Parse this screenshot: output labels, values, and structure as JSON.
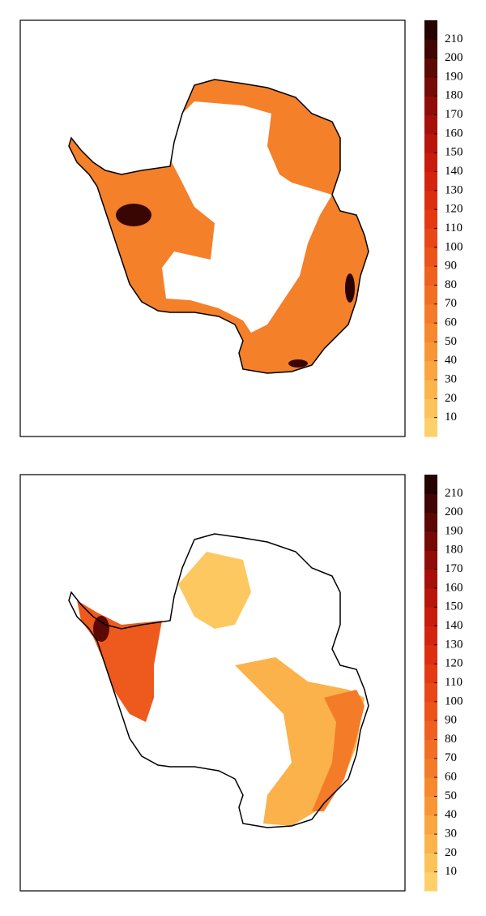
{
  "maps": [
    {
      "colorbar": {
        "lim": [
          0,
          220
        ],
        "ticks": [
          10,
          20,
          30,
          40,
          50,
          60,
          70,
          80,
          90,
          100,
          110,
          120,
          130,
          140,
          150,
          160,
          170,
          180,
          190,
          200,
          210
        ],
        "colors": [
          "#fdd06a",
          "#fcc35a",
          "#fbb44c",
          "#f9a540",
          "#f89636",
          "#f6882e",
          "#f47b28",
          "#f26e22",
          "#ef611e",
          "#ec541a",
          "#e84717",
          "#e33a14",
          "#dd2e12",
          "#d42410",
          "#c81c0e",
          "#b8160c",
          "#a5110a",
          "#8f0d08",
          "#760a06",
          "#5c0804",
          "#410603",
          "#250301"
        ]
      }
    },
    {
      "colorbar": {
        "lim": [
          0,
          220
        ],
        "ticks": [
          10,
          20,
          30,
          40,
          50,
          60,
          70,
          80,
          90,
          100,
          110,
          120,
          130,
          140,
          150,
          160,
          170,
          180,
          190,
          200,
          210
        ],
        "colors": [
          "#fdd06a",
          "#fcc35a",
          "#fbb44c",
          "#f9a540",
          "#f89636",
          "#f6882e",
          "#f47b28",
          "#f26e22",
          "#ef611e",
          "#ec541a",
          "#e84717",
          "#e33a14",
          "#dd2e12",
          "#d42410",
          "#c81c0e",
          "#b8160c",
          "#a5110a",
          "#8f0d08",
          "#760a06",
          "#5c0804",
          "#410603",
          "#250301"
        ]
      }
    }
  ]
}
